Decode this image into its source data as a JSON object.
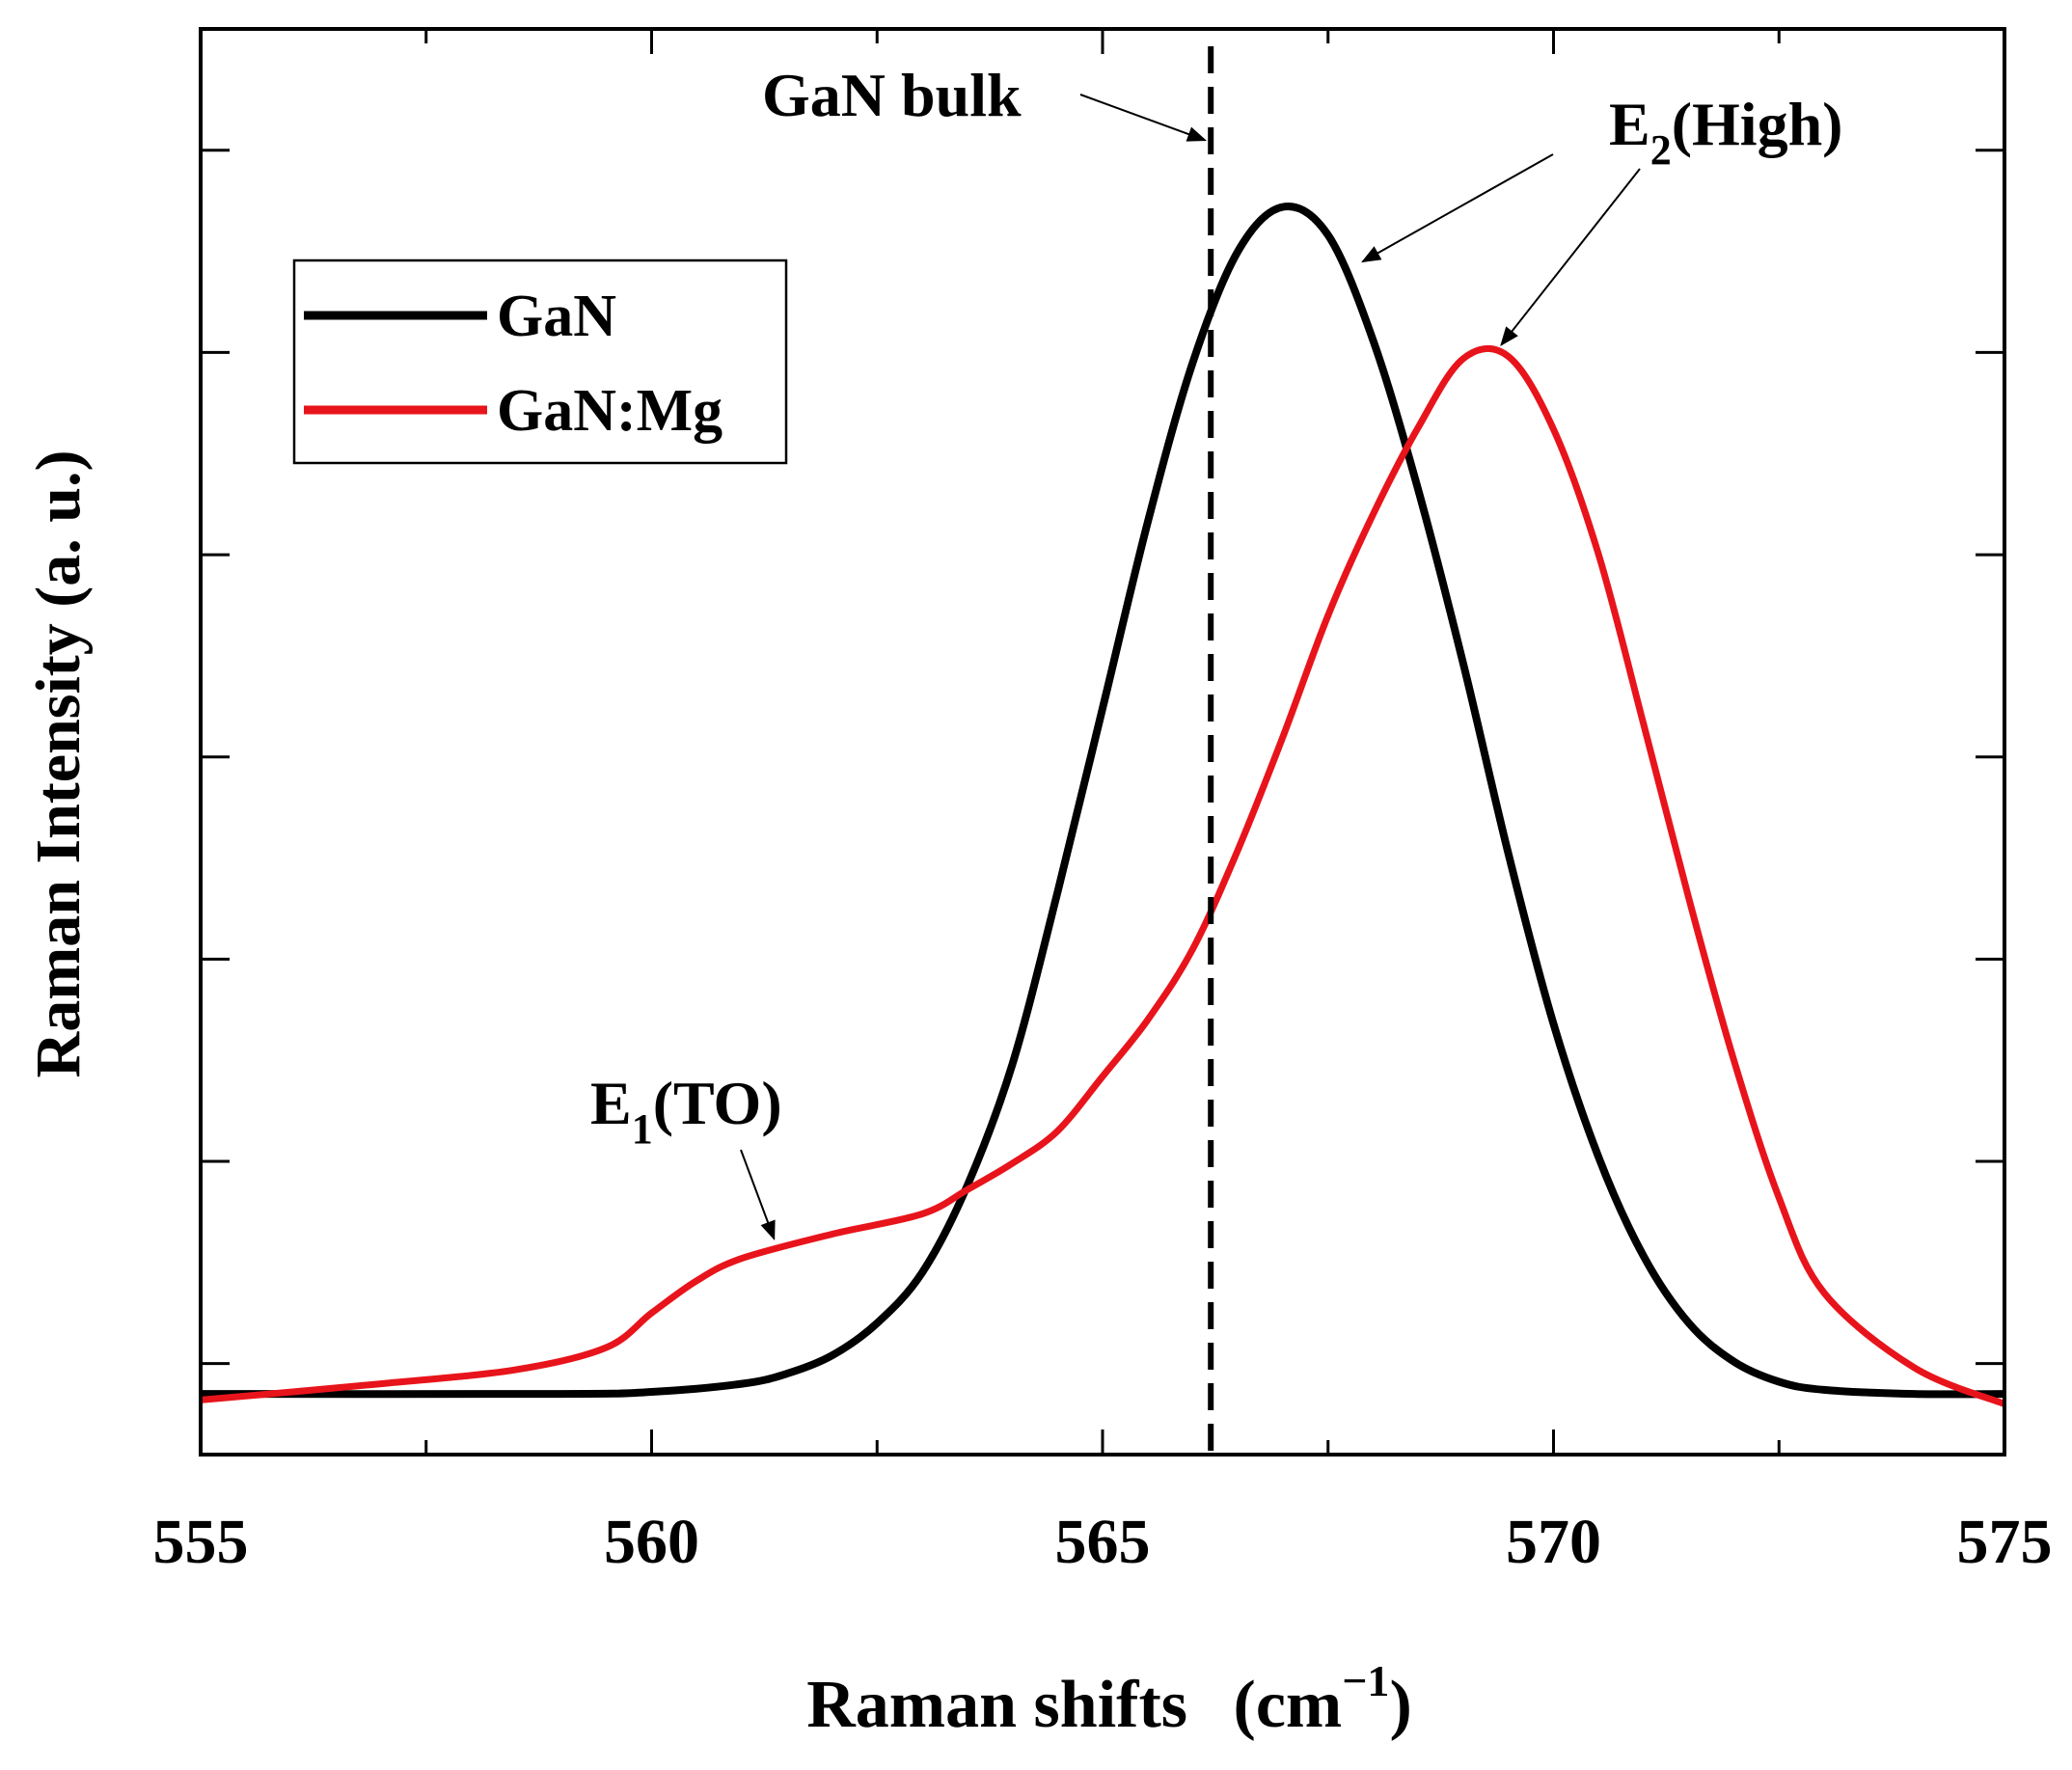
{
  "chart_data": {
    "type": "line",
    "title": "",
    "xlabel": "Raman shifts",
    "xlabel_unit": {
      "base": "(cm",
      "sup": "−1",
      "close": ")"
    },
    "ylabel": "Raman Intensity (a. u.)",
    "xlim": [
      555,
      575
    ],
    "ylim": [
      -0.45,
      6.6
    ],
    "x_major_ticks": [
      555,
      560,
      565,
      570,
      575
    ],
    "x_tick_labels": [
      "555",
      "560",
      "565",
      "570",
      "575"
    ],
    "x_minor_ticks": [
      557.5,
      562.5,
      567.5,
      572.5
    ],
    "y_ticks": [
      0,
      1,
      2,
      3,
      4,
      5,
      6
    ],
    "y_tick_labels": [],
    "grid": false,
    "legend_position": "top-left",
    "series": [
      {
        "name": "GaN",
        "color": "#000000",
        "x": [
          555,
          559,
          560,
          561,
          561.5,
          562,
          562.5,
          563,
          563.5,
          564,
          564.5,
          565,
          565.5,
          566,
          566.5,
          567,
          567.5,
          568,
          568.5,
          569,
          569.5,
          570,
          570.5,
          571,
          571.5,
          572,
          572.5,
          573,
          574,
          575
        ],
        "y": [
          -0.15,
          -0.15,
          -0.14,
          -0.1,
          -0.05,
          0.04,
          0.2,
          0.45,
          0.88,
          1.48,
          2.33,
          3.24,
          4.16,
          4.95,
          5.5,
          5.72,
          5.58,
          5.06,
          4.32,
          3.46,
          2.52,
          1.68,
          1.02,
          0.53,
          0.2,
          0.01,
          -0.09,
          -0.13,
          -0.15,
          -0.15
        ]
      },
      {
        "name": "GaN:Mg",
        "color": "#e8141b",
        "x": [
          555,
          557,
          558.5,
          559.5,
          560,
          560.5,
          561,
          562,
          563,
          563.5,
          564,
          564.5,
          565,
          565.5,
          566,
          566.5,
          567,
          567.5,
          568,
          568.5,
          569,
          569.5,
          570,
          570.5,
          571,
          571.5,
          572,
          572.5,
          573,
          574,
          575
        ],
        "y": [
          -0.18,
          -0.1,
          -0.03,
          0.08,
          0.25,
          0.41,
          0.52,
          0.64,
          0.74,
          0.86,
          0.99,
          1.15,
          1.42,
          1.7,
          2.05,
          2.54,
          3.1,
          3.7,
          4.2,
          4.63,
          4.97,
          4.98,
          4.62,
          4.0,
          3.16,
          2.3,
          1.5,
          0.82,
          0.35,
          -0.02,
          -0.2
        ]
      }
    ],
    "reference_line": {
      "x": 566.2,
      "label": "GaN bulk",
      "style": "dashed"
    },
    "annotations": [
      {
        "text": "GaN bulk",
        "target_x": 566.2,
        "target_y": 6.05
      },
      {
        "base": "E",
        "sub": "2",
        "rest": "(High)",
        "target_x": 567.8,
        "target_y": 5.45
      },
      {
        "base": "E",
        "sub": "2",
        "rest": "(High)",
        "target_x": 569.4,
        "target_y": 5.0
      },
      {
        "base": "E",
        "sub": "1",
        "rest": "(TO)",
        "target_x": 561.4,
        "target_y": 0.57
      }
    ]
  }
}
